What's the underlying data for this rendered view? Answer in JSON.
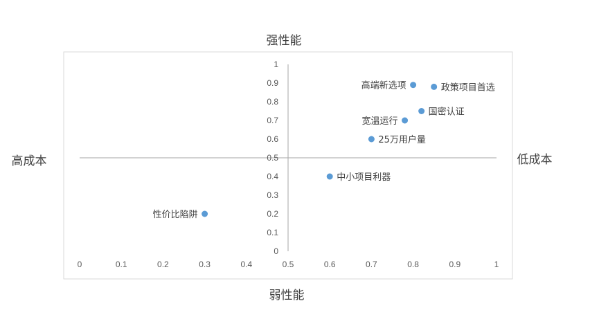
{
  "chart_data": {
    "type": "scatter",
    "quadrant_labels": {
      "top": "强性能",
      "bottom": "弱性能",
      "left": "高成本",
      "right": "低成本"
    },
    "xlim": [
      0,
      1
    ],
    "ylim": [
      0,
      1
    ],
    "x_ticks": [
      "0",
      "0.1",
      "0.2",
      "0.3",
      "0.4",
      "0.5",
      "0.6",
      "0.7",
      "0.8",
      "0.9",
      "1"
    ],
    "y_ticks": [
      "0",
      "0.1",
      "0.2",
      "0.3",
      "0.4",
      "0.5",
      "0.6",
      "0.7",
      "0.8",
      "0.9",
      "1"
    ],
    "marker_color": "#5b9bd5",
    "points": [
      {
        "label": "高端新选项",
        "x": 0.8,
        "y": 0.89,
        "label_side": "left"
      },
      {
        "label": "政策项目首选",
        "x": 0.85,
        "y": 0.88,
        "label_side": "right"
      },
      {
        "label": "国密认证",
        "x": 0.82,
        "y": 0.75,
        "label_side": "right"
      },
      {
        "label": "宽温运行",
        "x": 0.78,
        "y": 0.7,
        "label_side": "left"
      },
      {
        "label": "25万用户量",
        "x": 0.7,
        "y": 0.6,
        "label_side": "right"
      },
      {
        "label": "中小项目利器",
        "x": 0.6,
        "y": 0.4,
        "label_side": "right"
      },
      {
        "label": "性价比陷阱",
        "x": 0.3,
        "y": 0.2,
        "label_side": "left"
      }
    ]
  }
}
